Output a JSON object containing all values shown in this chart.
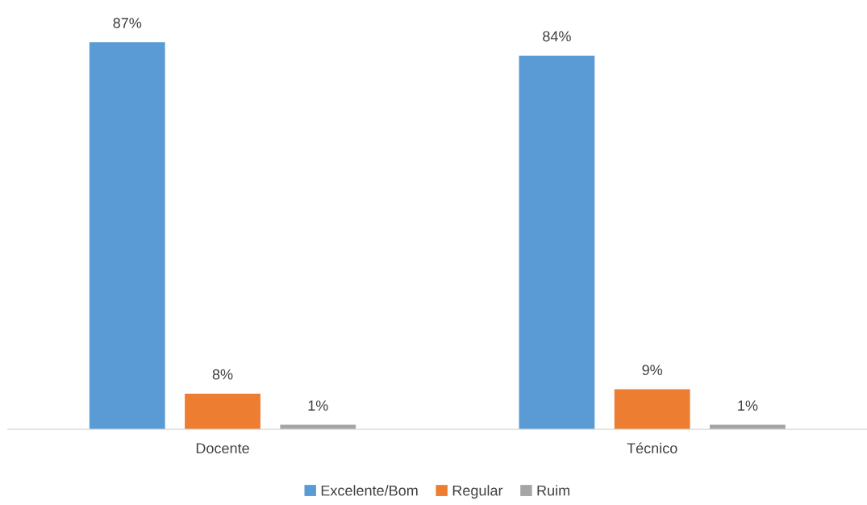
{
  "chart_data": {
    "type": "bar",
    "categories": [
      "Docente",
      "Técnico"
    ],
    "series": [
      {
        "name": "Excelente/Bom",
        "color": "#5b9bd5",
        "values": [
          87,
          84
        ],
        "value_labels": [
          "87%",
          "84%"
        ]
      },
      {
        "name": "Regular",
        "color": "#ed7d31",
        "values": [
          8,
          9
        ],
        "value_labels": [
          "8%",
          "9%"
        ]
      },
      {
        "name": "Ruim",
        "color": "#a5a5a5",
        "values": [
          1,
          1
        ],
        "value_labels": [
          "1%",
          "1%"
        ]
      }
    ],
    "grid": false,
    "legend": "bottom"
  }
}
